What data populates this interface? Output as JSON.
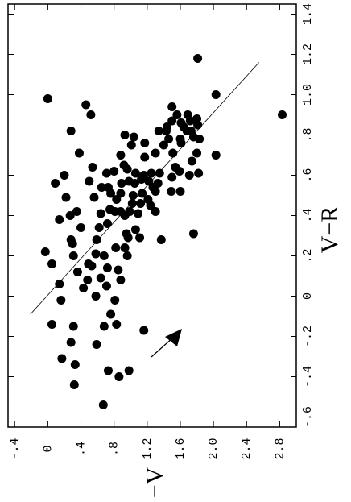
{
  "chart_data": {
    "type": "scatter",
    "x_label": "V−R",
    "y_label": "I−V",
    "xlim": [
      -0.65,
      1.45
    ],
    "ylim": [
      -0.48,
      3.0
    ],
    "xticks": [
      {
        "value": -0.6,
        "label": "-.6"
      },
      {
        "value": -0.4,
        "label": "-.4"
      },
      {
        "value": -0.2,
        "label": "-.2"
      },
      0,
      {
        "value": 0.2,
        "label": ".2"
      },
      {
        "value": 0.4,
        "label": ".4"
      },
      {
        "value": 0.6,
        "label": ".6"
      },
      {
        "value": 0.8,
        "label": ".8"
      },
      {
        "value": 1.0,
        "label": "1.0"
      },
      1.2,
      1.4
    ],
    "yticks": [
      {
        "value": -0.4,
        "label": "-.4"
      },
      0,
      {
        "value": 0.4,
        "label": ".4"
      },
      {
        "value": 0.8,
        "label": ".8"
      },
      1.2,
      1.6,
      {
        "value": 2.0,
        "label": "2.0"
      },
      2.4,
      2.8
    ],
    "color": "#000000",
    "x": [
      0.98,
      0.95,
      0.9,
      0.82,
      0.71,
      0.6,
      0.56,
      0.22,
      0.16,
      0.06,
      -0.02,
      -0.14,
      -0.31,
      -0.34,
      -0.23,
      -0.15,
      -0.44,
      -0.54,
      -0.24,
      -0.37,
      -0.4,
      -0.37,
      -0.17,
      -0.14,
      -0.15,
      -0.09,
      0.04,
      0.08,
      0.0,
      0.09,
      0.16,
      0.12,
      0.28,
      0.26,
      0.34,
      0.42,
      0.49,
      0.4,
      0.38,
      0.2,
      0.28,
      0.21,
      0.15,
      0.2,
      0.14,
      0.05,
      -0.02,
      0.08,
      0.13,
      0.24,
      0.2,
      0.24,
      0.34,
      0.36,
      0.41,
      0.43,
      0.42,
      0.4,
      0.42,
      0.31,
      0.33,
      0.29,
      0.29,
      0.41,
      0.46,
      0.48,
      0.46,
      0.51,
      0.56,
      0.57,
      0.5,
      0.58,
      0.57,
      0.56,
      0.6,
      0.54,
      0.45,
      0.42,
      0.28,
      0.52,
      0.56,
      0.51,
      0.54,
      0.49,
      0.57,
      0.64,
      0.54,
      0.61,
      0.62,
      0.7,
      0.75,
      0.79,
      0.8,
      0.65,
      0.51,
      0.42,
      0.48,
      0.76,
      0.69,
      0.71,
      0.75,
      0.82,
      0.87,
      0.84,
      0.94,
      0.9,
      0.86,
      0.9,
      0.84,
      0.82,
      0.87,
      0.88,
      0.85,
      0.79,
      0.82,
      0.76,
      0.71,
      0.64,
      0.59,
      0.52,
      0.67,
      0.71,
      0.61,
      0.6,
      0.62,
      0.52,
      0.31,
      0.78,
      0.7,
      1.0,
      1.18,
      0.9,
      0.61,
      0.61,
      0.61,
      0.63,
      0.82,
      0.78,
      0.78
    ],
    "y": [
      0.0,
      0.46,
      0.52,
      0.28,
      0.38,
      0.2,
      0.09,
      -0.03,
      0.05,
      0.14,
      0.16,
      0.05,
      0.17,
      0.33,
      0.28,
      0.31,
      0.32,
      0.67,
      0.59,
      0.73,
      0.86,
      0.98,
      1.16,
      0.83,
      0.68,
      0.76,
      0.43,
      0.48,
      0.58,
      0.64,
      0.49,
      0.36,
      0.28,
      0.3,
      0.4,
      0.35,
      0.22,
      0.27,
      0.14,
      0.31,
      0.59,
      0.58,
      0.53,
      0.68,
      0.72,
      0.71,
      0.81,
      0.88,
      0.85,
      0.93,
      0.96,
      0.82,
      0.62,
      0.72,
      0.64,
      0.75,
      0.88,
      0.93,
      0.99,
      0.95,
      1.06,
      1.11,
      0.97,
      1.09,
      1.12,
      1.21,
      1.02,
      1.14,
      1.05,
      0.98,
      1.03,
      1.13,
      1.22,
      1.33,
      1.16,
      1.27,
      1.24,
      1.3,
      1.37,
      1.3,
      0.89,
      0.76,
      0.73,
      0.56,
      0.5,
      0.54,
      0.65,
      0.71,
      0.8,
      0.88,
      1.01,
      1.04,
      0.93,
      0.92,
      0.88,
      0.81,
      0.83,
      1.17,
      1.17,
      1.3,
      1.4,
      1.43,
      1.5,
      1.44,
      1.5,
      1.56,
      1.61,
      1.69,
      1.64,
      1.73,
      1.72,
      1.8,
      1.81,
      1.76,
      1.68,
      1.61,
      1.51,
      1.54,
      1.5,
      1.6,
      1.74,
      1.8,
      1.82,
      1.71,
      1.59,
      1.49,
      1.76,
      1.83,
      2.03,
      2.03,
      1.81,
      2.83,
      1.35,
      1.25,
      1.06,
      0.96,
      1.34,
      1.46,
      1.6
    ],
    "fit_line": {
      "x": [
        -0.09,
        1.16
      ],
      "y": [
        -0.21,
        2.55
      ]
    }
  }
}
